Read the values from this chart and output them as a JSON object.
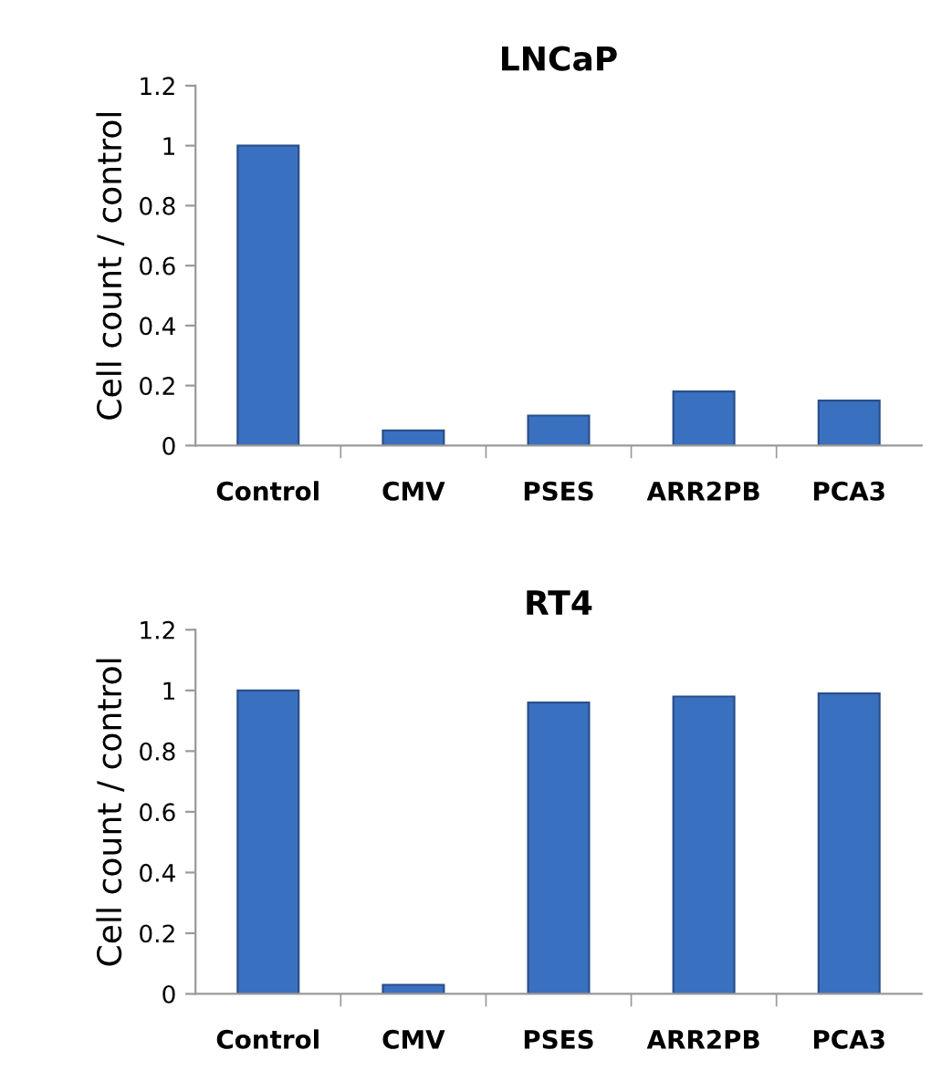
{
  "chart_data": [
    {
      "type": "bar",
      "title": "LNCaP",
      "ylabel": "Cell count / control",
      "categories": [
        "Control",
        "CMV",
        "PSES",
        "ARR2PB",
        "PCA3"
      ],
      "values": [
        1.0,
        0.05,
        0.1,
        0.18,
        0.15
      ],
      "color": "#3a70c0",
      "ylim": [
        0,
        1.2
      ],
      "yticks": [
        0,
        0.2,
        0.4,
        0.6,
        0.8,
        1,
        1.2
      ],
      "grid": false,
      "legend": false
    },
    {
      "type": "bar",
      "title": "RT4",
      "ylabel": "Cell count / control",
      "categories": [
        "Control",
        "CMV",
        "PSES",
        "ARR2PB",
        "PCA3"
      ],
      "values": [
        1.0,
        0.03,
        0.96,
        0.98,
        0.99
      ],
      "color": "#3a70c0",
      "ylim": [
        0,
        1.2
      ],
      "yticks": [
        0,
        0.2,
        0.4,
        0.6,
        0.8,
        1,
        1.2
      ],
      "grid": false,
      "legend": false
    }
  ]
}
